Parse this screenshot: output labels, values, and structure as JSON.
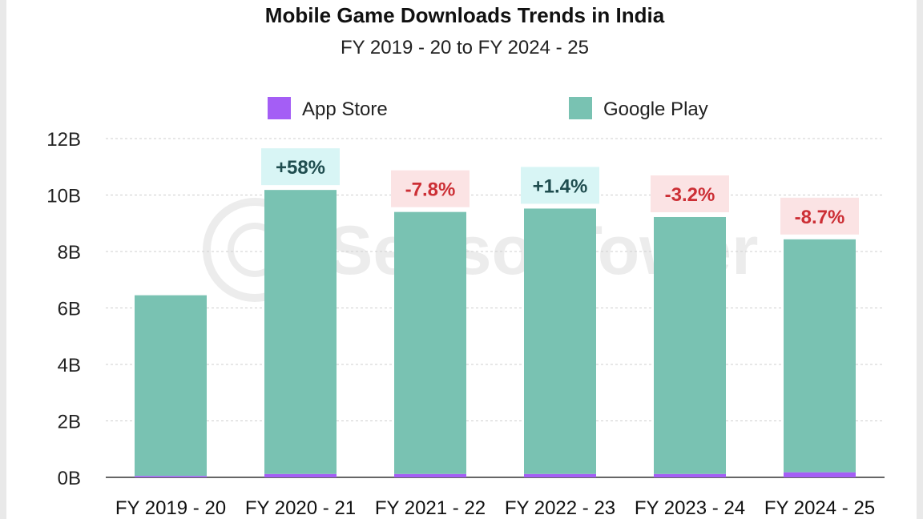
{
  "chart_data": {
    "type": "bar",
    "stacked": true,
    "title": "Mobile Game Downloads Trends in India",
    "subtitle": "FY 2019 - 20 to FY 2024 - 25",
    "watermark": "SensorTower",
    "categories": [
      "FY 2019 - 20",
      "FY 2020 - 21",
      "FY 2021 - 22",
      "FY 2022 - 23",
      "FY 2023 - 24",
      "FY 2024 - 25"
    ],
    "series": [
      {
        "name": "App Store",
        "color": "#a45ef5",
        "values": [
          0.05,
          0.12,
          0.12,
          0.12,
          0.12,
          0.18
        ]
      },
      {
        "name": "Google Play",
        "color": "#79c2b2",
        "values": [
          6.4,
          10.06,
          9.28,
          9.4,
          9.1,
          8.25
        ]
      }
    ],
    "annotations": [
      {
        "category": "FY 2020 - 21",
        "text": "+58%",
        "sentiment": "positive"
      },
      {
        "category": "FY 2021 - 22",
        "text": "-7.8%",
        "sentiment": "negative"
      },
      {
        "category": "FY 2022 - 23",
        "text": "+1.4%",
        "sentiment": "positive"
      },
      {
        "category": "FY 2023 - 24",
        "text": "-3.2%",
        "sentiment": "negative"
      },
      {
        "category": "FY 2024 - 25",
        "text": "-8.7%",
        "sentiment": "negative"
      }
    ],
    "yticks": [
      "0B",
      "2B",
      "4B",
      "6B",
      "8B",
      "10B",
      "12B"
    ],
    "ylim": [
      0,
      12
    ],
    "grid": true,
    "legend": "top-center",
    "colors": {
      "positive_bg": "#d8f5f5",
      "positive_text": "#1f4d4f",
      "negative_bg": "#fbe3e4",
      "negative_text": "#cc2f35",
      "grid": "#cfcfcf",
      "axis": "#333333"
    }
  }
}
